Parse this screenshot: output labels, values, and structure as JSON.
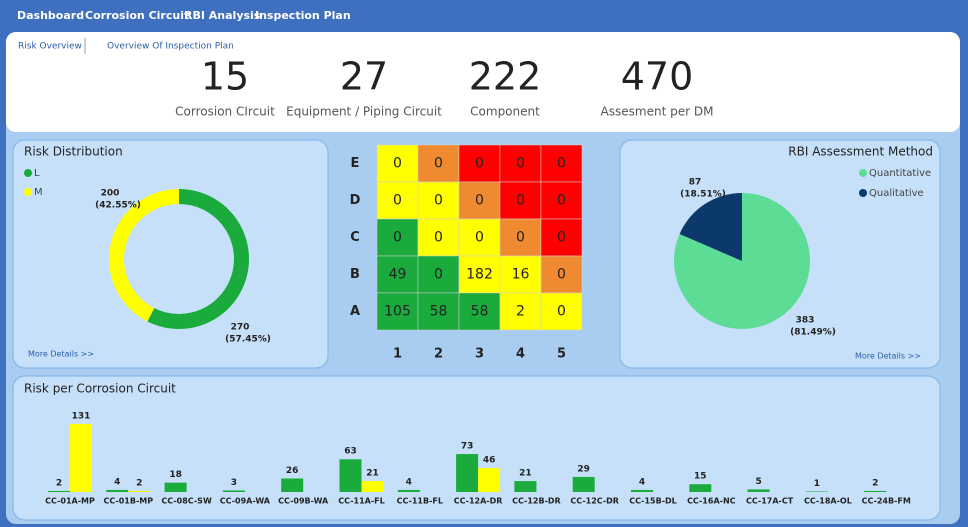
{
  "nav": [
    "Dashboard",
    "Corrosion Circuit",
    "RBI Analysis",
    "Inspection Plan"
  ],
  "tabs": [
    "Risk Overview",
    "Overview Of Inspection Plan"
  ],
  "kpis": [
    {
      "value": "15",
      "label": "Corrosion CIrcuit"
    },
    {
      "value": "27",
      "label": "Equipment / Piping Circuit"
    },
    {
      "value": "222",
      "label": "Component"
    },
    {
      "value": "470",
      "label": "Assesment per DM"
    }
  ],
  "risk_distribution": {
    "type": "donut",
    "title": "Risk Distribution",
    "more": "More Details >>",
    "series": [
      {
        "name": "L",
        "color": "#1aab3c",
        "value": 270,
        "percent_label": "(57.45%)"
      },
      {
        "name": "M",
        "color": "#ffff00",
        "value": 200,
        "percent_label": "(42.55%)"
      }
    ]
  },
  "risk_matrix": {
    "rows": [
      "E",
      "D",
      "C",
      "B",
      "A"
    ],
    "columns": [
      "1",
      "2",
      "3",
      "4",
      "5"
    ],
    "values": [
      [
        0,
        0,
        0,
        0,
        0
      ],
      [
        0,
        0,
        0,
        0,
        0
      ],
      [
        0,
        0,
        0,
        0,
        0
      ],
      [
        49,
        0,
        182,
        16,
        0
      ],
      [
        105,
        58,
        58,
        2,
        0
      ]
    ],
    "colors": [
      [
        "#ffff00",
        "#f08a30",
        "#ff0000",
        "#ff0000",
        "#ff0000"
      ],
      [
        "#ffff00",
        "#ffff00",
        "#f08a30",
        "#ff0000",
        "#ff0000"
      ],
      [
        "#1aab3c",
        "#ffff00",
        "#ffff00",
        "#f08a30",
        "#ff0000"
      ],
      [
        "#1aab3c",
        "#1aab3c",
        "#ffff00",
        "#ffff00",
        "#f08a30"
      ],
      [
        "#1aab3c",
        "#1aab3c",
        "#1aab3c",
        "#ffff00",
        "#ffff00"
      ]
    ]
  },
  "rbi_method": {
    "type": "pie",
    "title": "RBI Assessment Method",
    "more": "More Details >>",
    "series": [
      {
        "name": "Quantitative",
        "color": "#5ddc96",
        "value": 383,
        "percent_label": "(81.49%)"
      },
      {
        "name": "Qualitative",
        "color": "#0b3a6a",
        "value": 87,
        "percent_label": "(18.51%)"
      }
    ]
  },
  "risk_per_circuit": {
    "type": "bar",
    "title": "Risk per Corrosion Circuit",
    "categories": [
      "CC-01A-MP",
      "CC-01B-MP",
      "CC-08C-SW",
      "CC-09A-WA",
      "CC-09B-WA",
      "CC-11A-FL",
      "CC-11B-FL",
      "CC-12A-DR",
      "CC-12B-DR",
      "CC-12C-DR",
      "CC-15B-DL",
      "CC-16A-NC",
      "CC-17A-CT",
      "CC-18A-OL",
      "CC-24B-FM"
    ],
    "series": [
      {
        "name": "L",
        "color": "#1aab3c",
        "values": [
          2,
          4,
          18,
          3,
          26,
          63,
          4,
          73,
          21,
          29,
          4,
          15,
          5,
          1,
          2
        ]
      },
      {
        "name": "M",
        "color": "#ffff00",
        "values": [
          131,
          2,
          null,
          null,
          null,
          21,
          null,
          46,
          null,
          null,
          null,
          null,
          null,
          null,
          null
        ]
      }
    ]
  }
}
